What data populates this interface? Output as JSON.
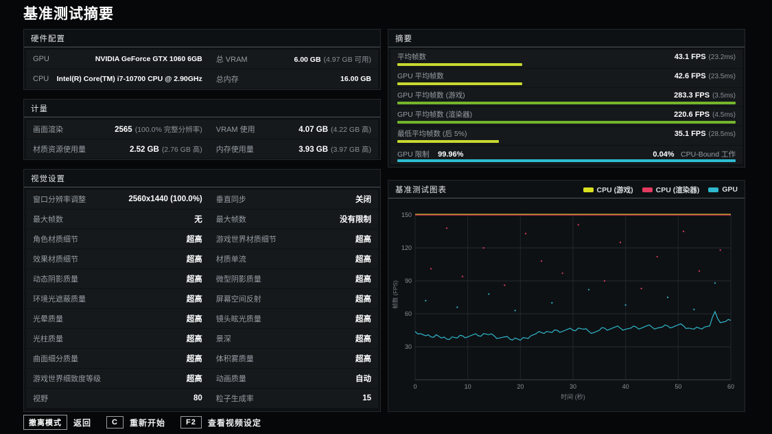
{
  "page_title": "基准测试摘要",
  "hardware": {
    "title": "硬件配置",
    "rows": [
      [
        {
          "label": "GPU",
          "value": "NVIDIA GeForce GTX 1060 6GB",
          "sub": ""
        },
        {
          "label": "总 VRAM",
          "value": "6.00 GB",
          "sub": "(4.97 GB 可用)"
        }
      ],
      [
        {
          "label": "CPU",
          "value": "Intel(R) Core(TM) i7-10700 CPU @ 2.90GHz",
          "sub": ""
        },
        {
          "label": "总内存",
          "value": "16.00 GB",
          "sub": ""
        }
      ]
    ]
  },
  "metrics": {
    "title": "计量",
    "rows": [
      [
        {
          "label": "画面渲染",
          "value": "2565",
          "sub": "(100.0% 完整分辨率)"
        },
        {
          "label": "VRAM 使用",
          "value": "4.07 GB",
          "sub": "(4.22 GB 高)"
        }
      ],
      [
        {
          "label": "材质资源使用量",
          "value": "2.52 GB",
          "sub": "(2.76 GB 高)"
        },
        {
          "label": "内存使用量",
          "value": "3.93 GB",
          "sub": "(3.97 GB 高)"
        }
      ]
    ]
  },
  "visual_settings": {
    "title": "视觉设置",
    "rows": [
      [
        {
          "label": "窗口分辨率调整",
          "value": "2560x1440 (100.0%)",
          "sub": ""
        },
        {
          "label": "垂直同步",
          "value": "关闭",
          "sub": ""
        }
      ],
      [
        {
          "label": "最大帧数",
          "value": "无",
          "sub": ""
        },
        {
          "label": "最大帧数",
          "value": "没有限制",
          "sub": ""
        }
      ],
      [
        {
          "label": "角色材质细节",
          "value": "超高",
          "sub": ""
        },
        {
          "label": "游戏世界材质细节",
          "value": "超高",
          "sub": ""
        }
      ],
      [
        {
          "label": "效果材质细节",
          "value": "超高",
          "sub": ""
        },
        {
          "label": "材质单流",
          "value": "超高",
          "sub": ""
        }
      ],
      [
        {
          "label": "动态阴影质量",
          "value": "超高",
          "sub": ""
        },
        {
          "label": "微型阴影质量",
          "value": "超高",
          "sub": ""
        }
      ],
      [
        {
          "label": "环境光遮蔽质量",
          "value": "超高",
          "sub": ""
        },
        {
          "label": "屏幕空间反射",
          "value": "超高",
          "sub": ""
        }
      ],
      [
        {
          "label": "光晕质量",
          "value": "超高",
          "sub": ""
        },
        {
          "label": "镜头眩光质量",
          "value": "超高",
          "sub": ""
        }
      ],
      [
        {
          "label": "光柱质量",
          "value": "超高",
          "sub": ""
        },
        {
          "label": "景深",
          "value": "超高",
          "sub": ""
        }
      ],
      [
        {
          "label": "曲面细分质量",
          "value": "超高",
          "sub": ""
        },
        {
          "label": "体积雾质量",
          "value": "超高",
          "sub": ""
        }
      ],
      [
        {
          "label": "游戏世界细致度等级",
          "value": "超高",
          "sub": ""
        },
        {
          "label": "动画质量",
          "value": "自动",
          "sub": ""
        }
      ],
      [
        {
          "label": "视野",
          "value": "80",
          "sub": ""
        },
        {
          "label": "粒子生成率",
          "value": "15",
          "sub": ""
        }
      ]
    ]
  },
  "summary": {
    "title": "摘要",
    "bars": [
      {
        "label": "平均帧数",
        "value": "43.1 FPS",
        "sub": "(23.2ms)",
        "color": "#c9d930",
        "pct": 37
      },
      {
        "label": "GPU 平均帧数",
        "value": "42.6 FPS",
        "sub": "(23.5ms)",
        "color": "#c9d930",
        "pct": 37
      },
      {
        "label": "GPU 平均帧数 (游戏)",
        "value": "283.3 FPS",
        "sub": "(3.5ms)",
        "color": "#74b52c",
        "pct": 100
      },
      {
        "label": "GPU 平均帧数 (渲染器)",
        "value": "220.6 FPS",
        "sub": "(4.5ms)",
        "color": "#74b52c",
        "pct": 100
      },
      {
        "label": "最低平均帧数 (后 5%)",
        "value": "35.1 FPS",
        "sub": "(28.5ms)",
        "color": "#c9d930",
        "pct": 30
      }
    ],
    "gpu_limit": {
      "label": "GPU 限制",
      "value": "99.96%",
      "right_value": "0.04%",
      "right_label": "CPU-Bound 工作",
      "color": "#2fbdd1",
      "pct": 100
    }
  },
  "chart": {
    "title": "基准测试图表",
    "legend": [
      {
        "label": "CPU (游戏)",
        "color": "#d9e021"
      },
      {
        "label": "CPU (渲染器)",
        "color": "#e23b5f"
      },
      {
        "label": "GPU",
        "color": "#2fb8cc"
      }
    ]
  },
  "chart_data": {
    "type": "line",
    "xlabel": "时间 (秒)",
    "ylabel": "帧数 (FPS)",
    "xticks": [
      0,
      10,
      20,
      30,
      40,
      50,
      60
    ],
    "yticks": [
      30,
      60,
      90,
      120,
      150
    ],
    "xlim": [
      0,
      60
    ],
    "ylim": [
      0,
      155
    ],
    "series": [
      {
        "name": "CPU (游戏)",
        "color": "#d9e021",
        "note": "avg 283.3 FPS, line clipped at chart top",
        "clipped_at": 150
      },
      {
        "name": "CPU (渲染器)",
        "color": "#e23b5f",
        "note": "avg 220.6 FPS, line clipped at chart top",
        "clipped_at": 150
      },
      {
        "name": "GPU",
        "color": "#2fb8cc",
        "x_step": 1,
        "values": [
          44,
          42,
          40,
          39,
          41,
          38,
          37,
          39,
          38,
          40,
          39,
          41,
          40,
          42,
          41,
          40,
          38,
          39,
          37,
          38,
          36,
          38,
          40,
          42,
          43,
          44,
          43,
          45,
          44,
          46,
          45,
          47,
          46,
          44,
          43,
          45,
          47,
          46,
          48,
          47,
          46,
          47,
          48,
          47,
          49,
          48,
          47,
          48,
          49,
          48,
          50,
          49,
          47,
          46,
          47,
          48,
          49,
          62,
          52,
          53,
          54
        ]
      }
    ],
    "scatter_red": [
      [
        3,
        101
      ],
      [
        6,
        138
      ],
      [
        9,
        94
      ],
      [
        13,
        120
      ],
      [
        17,
        86
      ],
      [
        21,
        133
      ],
      [
        24,
        108
      ],
      [
        28,
        97
      ],
      [
        31,
        141
      ],
      [
        36,
        90
      ],
      [
        39,
        125
      ],
      [
        43,
        83
      ],
      [
        46,
        112
      ],
      [
        51,
        135
      ],
      [
        54,
        99
      ],
      [
        58,
        118
      ]
    ],
    "scatter_cyan": [
      [
        2,
        72
      ],
      [
        8,
        66
      ],
      [
        14,
        78
      ],
      [
        19,
        63
      ],
      [
        26,
        70
      ],
      [
        33,
        82
      ],
      [
        40,
        68
      ],
      [
        48,
        75
      ],
      [
        53,
        64
      ],
      [
        57,
        88
      ]
    ]
  },
  "footer": {
    "items": [
      {
        "key": "撤离模式",
        "label": "返回"
      },
      {
        "key": "C",
        "label": "重新开始"
      },
      {
        "key": "F2",
        "label": "查看视频设定"
      }
    ]
  }
}
